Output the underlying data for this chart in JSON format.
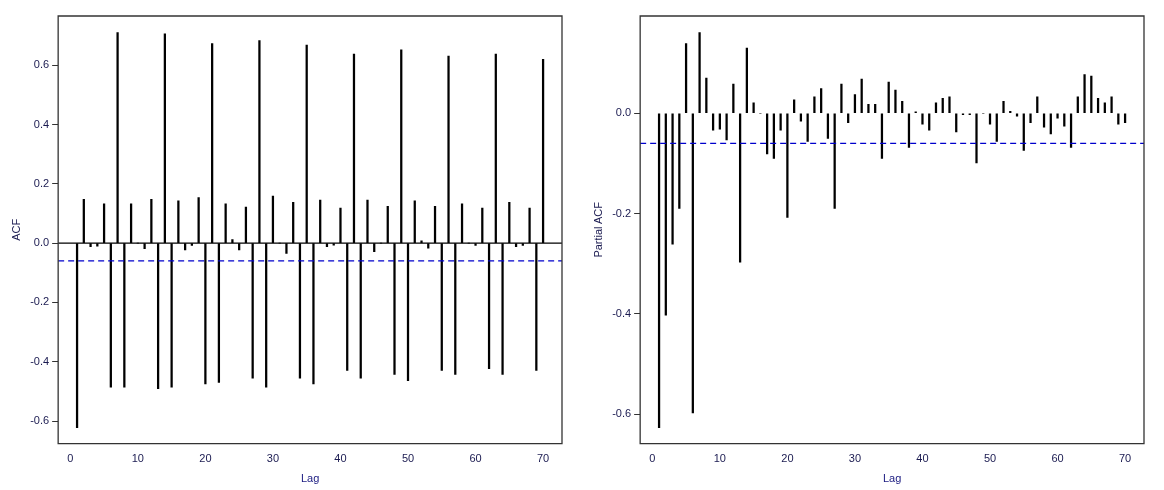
{
  "chart_data": [
    {
      "type": "bar",
      "xlabel": "Lag",
      "ylabel": "ACF",
      "xlim": [
        -1.8,
        72.8
      ],
      "ylim": [
        -0.676,
        0.766
      ],
      "xticks": [
        0,
        10,
        20,
        30,
        40,
        50,
        60,
        70
      ],
      "yticks": [
        {
          "value": -0.6,
          "label": "-0.6"
        },
        {
          "value": -0.4,
          "label": "-0.4"
        },
        {
          "value": -0.2,
          "label": "-0.2"
        },
        {
          "value": 0,
          "label": "0.0"
        },
        {
          "value": 0.2,
          "label": "0.2"
        },
        {
          "value": 0.4,
          "label": "0.4"
        },
        {
          "value": 0.6,
          "label": "0.6"
        }
      ],
      "x": [
        1,
        2,
        3,
        4,
        5,
        6,
        7,
        8,
        9,
        10,
        11,
        12,
        13,
        14,
        15,
        16,
        17,
        18,
        19,
        20,
        21,
        22,
        23,
        24,
        25,
        26,
        27,
        28,
        29,
        30,
        31,
        32,
        33,
        34,
        35,
        36,
        37,
        38,
        39,
        40,
        41,
        42,
        43,
        44,
        45,
        46,
        47,
        48,
        49,
        50,
        51,
        52,
        53,
        54,
        55,
        56,
        57,
        58,
        59,
        60,
        61,
        62,
        63,
        64,
        65,
        66,
        67,
        68,
        69,
        70
      ],
      "series": [
        {
          "color": "#000000",
          "values": [
            -0.622,
            0.148,
            -0.012,
            -0.01,
            0.133,
            -0.486,
            0.71,
            -0.486,
            0.133,
            0,
            -0.019,
            0.148,
            -0.491,
            0.706,
            -0.486,
            0.143,
            -0.023,
            -0.008,
            0.154,
            -0.475,
            0.673,
            -0.47,
            0.133,
            0.012,
            -0.023,
            0.122,
            -0.455,
            0.683,
            -0.486,
            0.159,
            0,
            -0.035,
            0.138,
            -0.455,
            0.668,
            -0.475,
            0.145,
            -0.012,
            -0.007,
            0.118,
            -0.429,
            0.638,
            -0.455,
            0.145,
            -0.029,
            0,
            0.124,
            -0.443,
            0.652,
            -0.464,
            0.143,
            0.008,
            -0.017,
            0.124,
            -0.429,
            0.631,
            -0.443,
            0.133,
            0,
            -0.008,
            0.118,
            -0.423,
            0.638,
            -0.443,
            0.138,
            -0.012,
            -0.008,
            0.118,
            -0.429,
            0.62
          ]
        }
      ],
      "ref_lines": [
        {
          "axis": "y",
          "value": 0,
          "color": "#000000",
          "line_style": "solid"
        },
        {
          "axis": "y",
          "value": -0.06,
          "color": "#0000cc",
          "line_style": "dashed"
        }
      ]
    },
    {
      "type": "bar",
      "xlabel": "Lag",
      "ylabel": "Partial ACF",
      "xlim": [
        -1.8,
        72.8
      ],
      "ylim": [
        -0.659,
        0.194
      ],
      "xticks": [
        0,
        10,
        20,
        30,
        40,
        50,
        60,
        70
      ],
      "yticks": [
        {
          "value": -0.6,
          "label": "-0.6"
        },
        {
          "value": -0.4,
          "label": "-0.4"
        },
        {
          "value": -0.2,
          "label": "-0.2"
        },
        {
          "value": 0,
          "label": "0.0"
        }
      ],
      "x": [
        1,
        2,
        3,
        4,
        5,
        6,
        7,
        8,
        9,
        10,
        11,
        12,
        13,
        14,
        15,
        16,
        17,
        18,
        19,
        20,
        21,
        22,
        23,
        24,
        25,
        26,
        27,
        28,
        29,
        30,
        31,
        32,
        33,
        34,
        35,
        36,
        37,
        38,
        39,
        40,
        41,
        42,
        43,
        44,
        45,
        46,
        47,
        48,
        49,
        50,
        51,
        52,
        53,
        54,
        55,
        56,
        57,
        58,
        59,
        60,
        61,
        62,
        63,
        64,
        65,
        66,
        67,
        68,
        69,
        70
      ],
      "series": [
        {
          "color": "#000000",
          "values": [
            -0.627,
            -0.403,
            -0.261,
            -0.19,
            0.139,
            -0.598,
            0.161,
            0.07,
            -0.034,
            -0.032,
            -0.053,
            0.058,
            -0.297,
            0.13,
            0.021,
            0,
            -0.081,
            -0.09,
            -0.034,
            -0.208,
            0.027,
            -0.016,
            -0.056,
            0.033,
            0.049,
            -0.05,
            -0.19,
            0.058,
            -0.019,
            0.037,
            0.068,
            0.018,
            0.018,
            -0.09,
            0.062,
            0.046,
            0.024,
            -0.068,
            0.003,
            -0.022,
            -0.034,
            0.021,
            0.03,
            0.033,
            -0.037,
            -0.003,
            -0.003,
            -0.099,
            0,
            -0.022,
            -0.056,
            0.024,
            0.004,
            -0.006,
            -0.074,
            -0.019,
            0.033,
            -0.028,
            -0.041,
            -0.01,
            -0.026,
            -0.068,
            0.033,
            0.077,
            0.074,
            0.03,
            0.021,
            0.033,
            -0.022,
            -0.019
          ]
        }
      ],
      "ref_lines": [
        {
          "axis": "y",
          "value": -0.06,
          "color": "#0000cc",
          "line_style": "dashed"
        }
      ]
    }
  ]
}
